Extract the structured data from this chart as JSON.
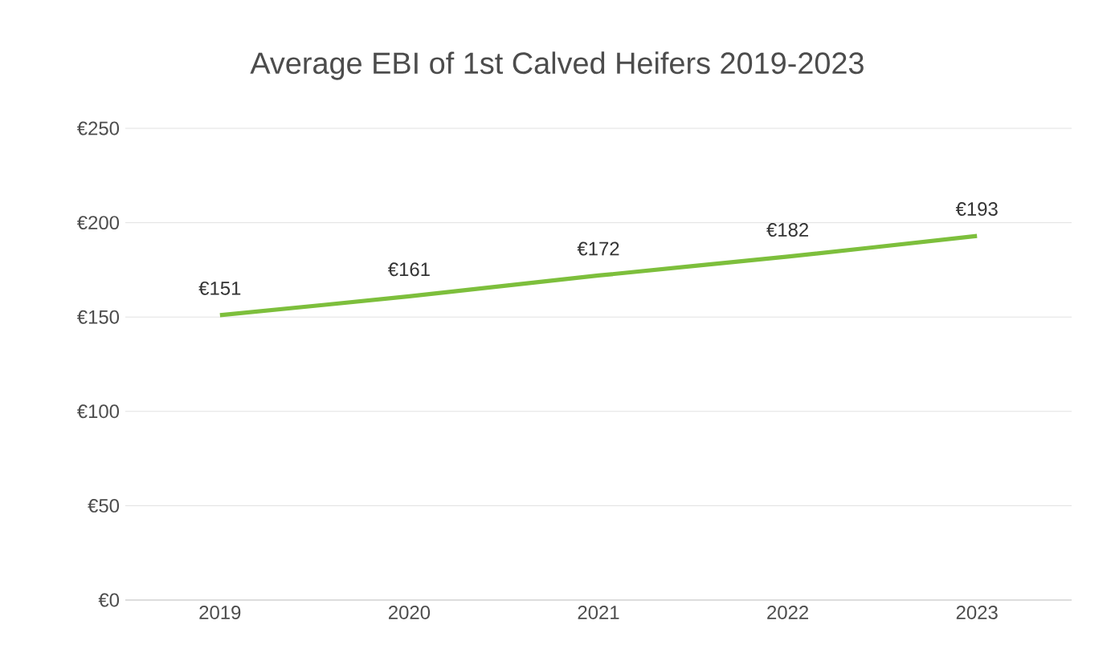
{
  "chart_data": {
    "type": "line",
    "title": "Average EBI of 1st Calved Heifers 2019-2023",
    "categories": [
      "2019",
      "2020",
      "2021",
      "2022",
      "2023"
    ],
    "series": [
      {
        "color": "#7dbf3c",
        "values": [
          151,
          161,
          172,
          182,
          193
        ],
        "value_labels": [
          "€151",
          "€161",
          "€172",
          "€182",
          "€193"
        ]
      }
    ],
    "ylim": [
      0,
      250
    ],
    "yticks": [
      {
        "value": 0,
        "label": "€0"
      },
      {
        "value": 50,
        "label": "€50"
      },
      {
        "value": 100,
        "label": "€100"
      },
      {
        "value": 150,
        "label": "€150"
      },
      {
        "value": 200,
        "label": "€200"
      },
      {
        "value": 250,
        "label": "€250"
      }
    ],
    "grid": "y",
    "legend": false,
    "marker": "none",
    "line_style": "solid"
  }
}
